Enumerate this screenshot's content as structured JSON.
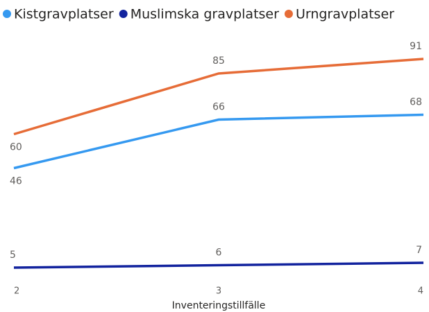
{
  "chart_data": {
    "type": "line",
    "x": [
      2,
      3,
      4
    ],
    "xlim": [
      2,
      4
    ],
    "xticks": [
      2,
      3,
      4
    ],
    "ylim": [
      0,
      100
    ],
    "x_label": "Inventeringstillfälle",
    "legend": "top-left",
    "series": [
      {
        "name": "Kistgravplatser",
        "color": "#3599f0",
        "values": [
          46,
          66,
          68
        ]
      },
      {
        "name": "Muslimska gravplatser",
        "color": "#12239e",
        "values": [
          5,
          6,
          7
        ]
      },
      {
        "name": "Urngravplatser",
        "color": "#e66c37",
        "values": [
          60,
          85,
          91
        ]
      }
    ]
  }
}
